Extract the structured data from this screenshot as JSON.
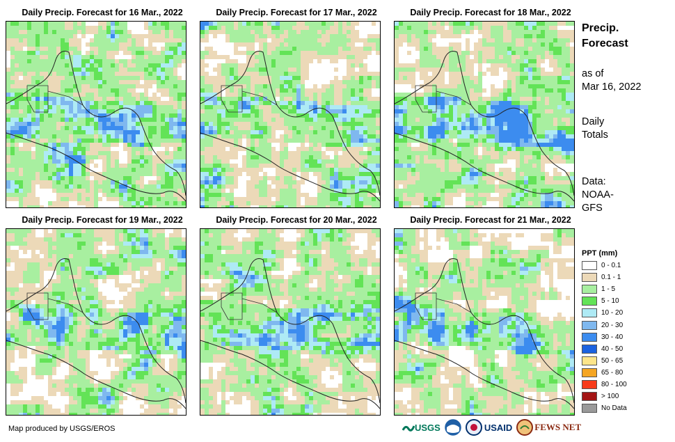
{
  "panels": [
    {
      "title": "Daily Precip. Forecast for 16 Mar., 2022",
      "seed": 11,
      "wet": 0.62
    },
    {
      "title": "Daily Precip. Forecast for 17 Mar., 2022",
      "seed": 23,
      "wet": 0.5
    },
    {
      "title": "Daily Precip. Forecast for 18 Mar., 2022",
      "seed": 37,
      "wet": 0.55
    },
    {
      "title": "Daily Precip. Forecast for 19 Mar., 2022",
      "seed": 41,
      "wet": 0.48
    },
    {
      "title": "Daily Precip. Forecast for 20 Mar., 2022",
      "seed": 53,
      "wet": 0.58
    },
    {
      "title": "Daily Precip. Forecast for 21 Mar., 2022",
      "seed": 67,
      "wet": 0.46
    }
  ],
  "side": {
    "title_line1": "Precip.",
    "title_line2": "Forecast",
    "asof_line1": "as of",
    "asof_line2": "Mar 16, 2022",
    "daily_line1": "Daily",
    "daily_line2": "Totals",
    "data_line1": "Data:",
    "data_line2": "NOAA-",
    "data_line3": "GFS"
  },
  "legend": {
    "title": "PPT (mm)",
    "items": [
      {
        "label": "0 - 0.1",
        "color": "#ffffff"
      },
      {
        "label": "0.1 - 1",
        "color": "#ecd9b8"
      },
      {
        "label": "1 - 5",
        "color": "#a8efa0"
      },
      {
        "label": "5 - 10",
        "color": "#63e357"
      },
      {
        "label": "10 - 20",
        "color": "#aeeaf5"
      },
      {
        "label": "20 - 30",
        "color": "#7fb8ef"
      },
      {
        "label": "30 - 40",
        "color": "#3c8cef"
      },
      {
        "label": "40 - 50",
        "color": "#1b62e0"
      },
      {
        "label": "50 - 65",
        "color": "#fde58a"
      },
      {
        "label": "65 - 80",
        "color": "#f5a623"
      },
      {
        "label": "80 - 100",
        "color": "#f73b1b"
      },
      {
        "label": "> 100",
        "color": "#a31414"
      },
      {
        "label": "No Data",
        "color": "#9a9a9a"
      }
    ]
  },
  "credit": "Map produced by USGS/EROS",
  "logos": {
    "usgs": "USGS",
    "usaid": "USAID",
    "fewsnet": "FEWS NET"
  }
}
